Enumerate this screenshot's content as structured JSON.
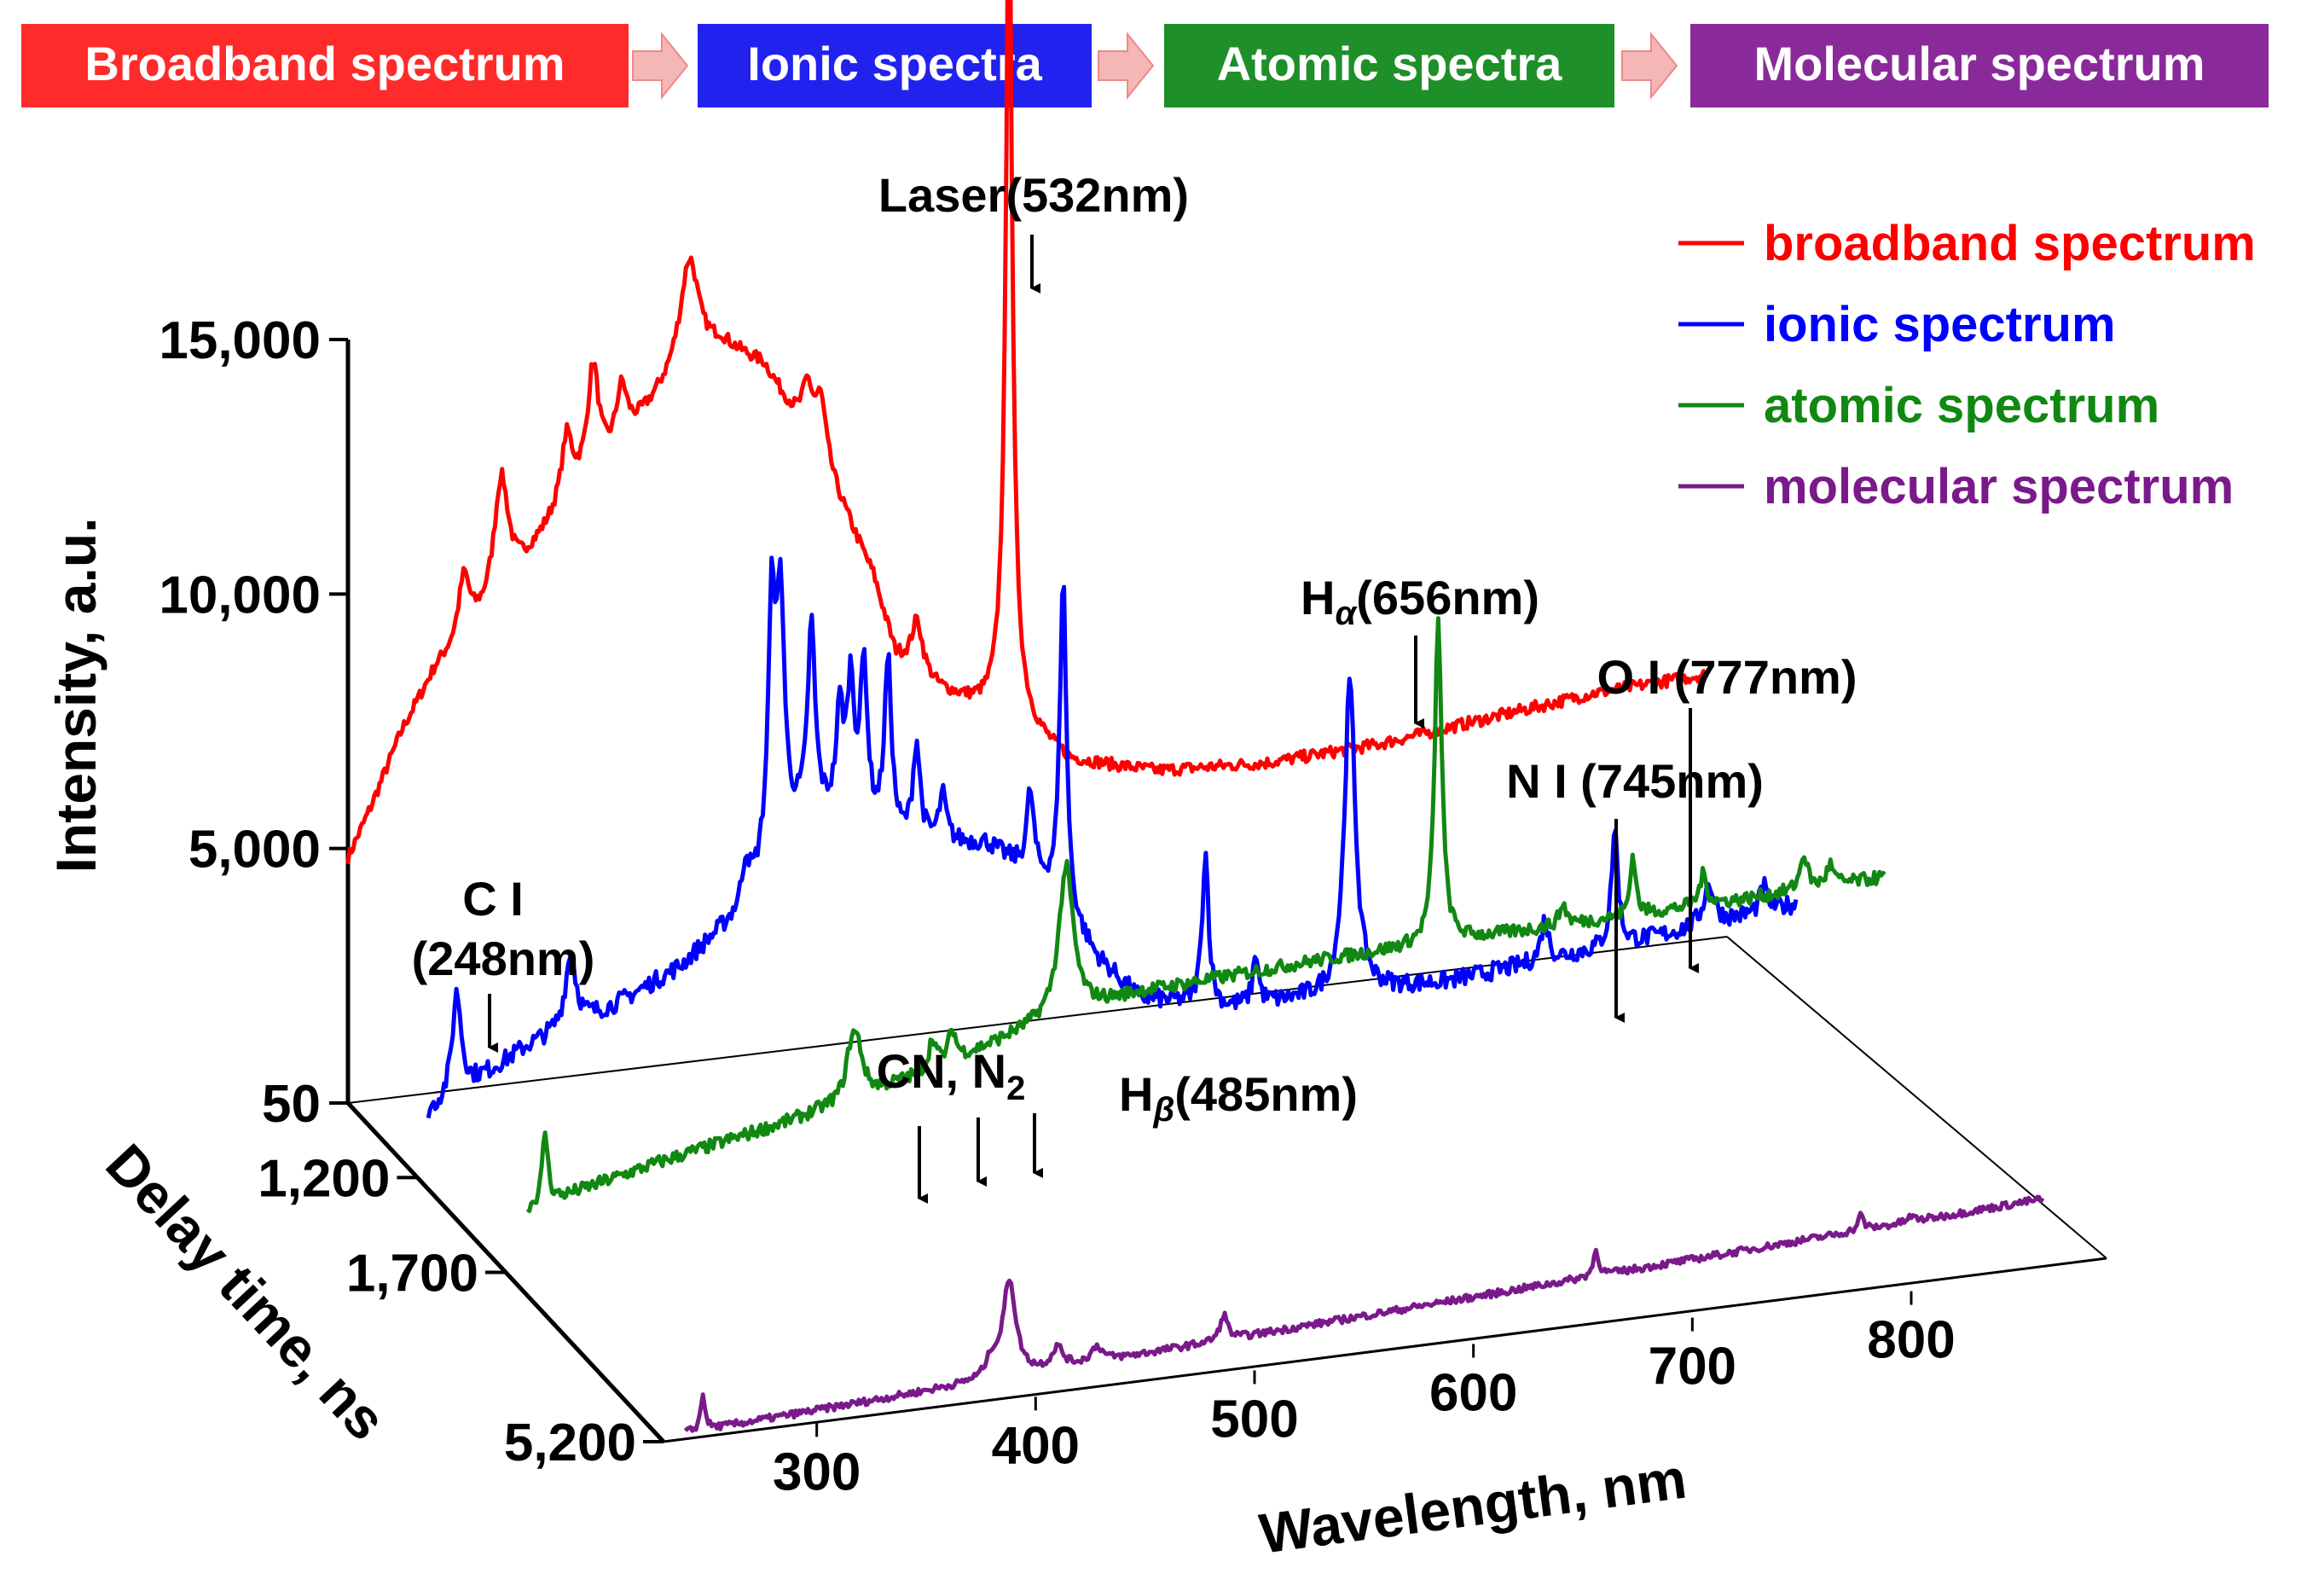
{
  "chart_data": {
    "type": "3d-waterfall-line",
    "colors": {
      "broadband": "#ff0000",
      "ionic": "#0000ff",
      "atomic": "#118811",
      "molecular": "#7a1a8a"
    },
    "stages": [
      "Broadband spectrum",
      "Ionic spectra",
      "Atomic spectra",
      "Molecular spectrum"
    ],
    "legend": [
      "broadband spectrum",
      "ionic spectrum",
      "atomic spectrum",
      "molecular spectrum"
    ],
    "xlabel": "Wavelength, nm",
    "ylabel": "Intensity, a.u.",
    "zlabel": "Delay time, ns",
    "x_ticks": [
      "300",
      "400",
      "500",
      "600",
      "700",
      "800"
    ],
    "y_ticks": [
      "50",
      "5,000",
      "10,000",
      "15,000"
    ],
    "z_ticks": [
      "50",
      "1,200",
      "1,700",
      "5,200"
    ],
    "xlim": [
      230,
      860
    ],
    "ylim": [
      0,
      15000
    ],
    "annotations": {
      "laser": "Laser(532nm)",
      "halpha_sym": "H",
      "halpha_sub": "α",
      "halpha_val": "(656nm)",
      "oi": "O I (777nm)",
      "ni": "N I (745nm)",
      "ci_1": "C I",
      "ci_2": "(248nm)",
      "cn_pre": "CN, N",
      "cn_sub": "2",
      "hbeta_sym": "H",
      "hbeta_sub": "β",
      "hbeta_val": "(485nm)"
    },
    "series": [
      {
        "name": "broadband spectrum",
        "delay": 50,
        "baseline": 1500,
        "noise": 120,
        "points": [
          [
            230,
            3300
          ],
          [
            240,
            4200
          ],
          [
            255,
            5700
          ],
          [
            270,
            6800
          ],
          [
            300,
            8000
          ],
          [
            330,
            9800
          ],
          [
            350,
            10500
          ],
          [
            380,
            12000
          ],
          [
            400,
            12500
          ],
          [
            420,
            12000
          ],
          [
            450,
            9600
          ],
          [
            470,
            7600
          ],
          [
            480,
            6000
          ],
          [
            500,
            5200
          ],
          [
            520,
            4700
          ],
          [
            540,
            4200
          ],
          [
            560,
            3500
          ],
          [
            600,
            3100
          ],
          [
            650,
            3000
          ],
          [
            700,
            3100
          ],
          [
            760,
            3400
          ],
          [
            800,
            3600
          ],
          [
            850,
            3700
          ]
        ],
        "peaks": [
          [
            283,
            1200,
            3
          ],
          [
            300,
            2400,
            4
          ],
          [
            330,
            1200,
            3
          ],
          [
            342,
            2100,
            3
          ],
          [
            355,
            1100,
            3
          ],
          [
            386,
            2100,
            5
          ],
          [
            440,
            1000,
            3
          ],
          [
            446,
            1200,
            3
          ],
          [
            490,
            1000,
            3
          ],
          [
            532,
            11000,
            1.2
          ],
          [
            532,
            6500,
            3
          ]
        ]
      },
      {
        "name": "ionic spectrum",
        "delay": 1200,
        "baseline": 200,
        "noise": 180,
        "points": [
          [
            230,
            900
          ],
          [
            250,
            1400
          ],
          [
            280,
            2100
          ],
          [
            320,
            2700
          ],
          [
            350,
            3300
          ],
          [
            380,
            4300
          ],
          [
            395,
            5600
          ],
          [
            410,
            6000
          ],
          [
            450,
            5200
          ],
          [
            490,
            5000
          ],
          [
            520,
            3900
          ],
          [
            540,
            2500
          ],
          [
            560,
            1600
          ],
          [
            600,
            1200
          ],
          [
            700,
            1200
          ],
          [
            800,
            1600
          ],
          [
            860,
            1900
          ]
        ],
        "peaks": [
          [
            248,
            2000,
            2.5
          ],
          [
            300,
            1400,
            3
          ],
          [
            380,
            900,
            2
          ],
          [
            392,
            4800,
            2
          ],
          [
            396,
            4300,
            2
          ],
          [
            410,
            3600,
            2
          ],
          [
            423,
            2000,
            2
          ],
          [
            428,
            2600,
            2
          ],
          [
            434,
            3100,
            2
          ],
          [
            445,
            3400,
            2
          ],
          [
            458,
            1900,
            2
          ],
          [
            470,
            900,
            2
          ],
          [
            510,
            1600,
            2
          ],
          [
            525,
            6500,
            1.8
          ],
          [
            590,
            3000,
            1.8
          ],
          [
            613,
            1000,
            1.5
          ],
          [
            656,
            6100,
            3
          ],
          [
            745,
            800,
            2
          ],
          [
            777,
            2300,
            1.8
          ],
          [
            820,
            800,
            3
          ],
          [
            845,
            500,
            2
          ]
        ]
      },
      {
        "name": "atomic spectrum",
        "delay": 1700,
        "baseline": 1100,
        "noise": 130,
        "points": [
          [
            230,
            0
          ],
          [
            300,
            700
          ],
          [
            360,
            1200
          ],
          [
            420,
            1800
          ],
          [
            480,
            2600
          ],
          [
            520,
            2900
          ],
          [
            600,
            3100
          ],
          [
            700,
            3200
          ],
          [
            800,
            3300
          ],
          [
            860,
            3400
          ]
        ],
        "peaks": [
          [
            248,
            1400,
            1.5
          ],
          [
            388,
            900,
            3
          ],
          [
            391,
            700,
            3
          ],
          [
            425,
            600,
            2
          ],
          [
            434,
            600,
            2
          ],
          [
            486,
            2900,
            4
          ],
          [
            656,
            6300,
            2
          ],
          [
            713,
            400,
            2
          ],
          [
            745,
            1200,
            1.5
          ],
          [
            777,
            600,
            2
          ],
          [
            823,
            700,
            2
          ],
          [
            835,
            400,
            2
          ]
        ]
      },
      {
        "name": "molecular spectrum",
        "delay": 5200,
        "baseline": 100,
        "noise": 70,
        "points": [
          [
            230,
            0
          ],
          [
            860,
            1400
          ]
        ],
        "peaks": [
          [
            248,
            700,
            1.2
          ],
          [
            380,
            350,
            3
          ],
          [
            388,
            1900,
            3.5
          ],
          [
            410,
            400,
            3
          ],
          [
            428,
            300,
            3
          ],
          [
            486,
            500,
            2
          ],
          [
            656,
            500,
            1.5
          ],
          [
            777,
            300,
            1.5
          ],
          [
            800,
            100,
            2
          ]
        ]
      }
    ]
  }
}
